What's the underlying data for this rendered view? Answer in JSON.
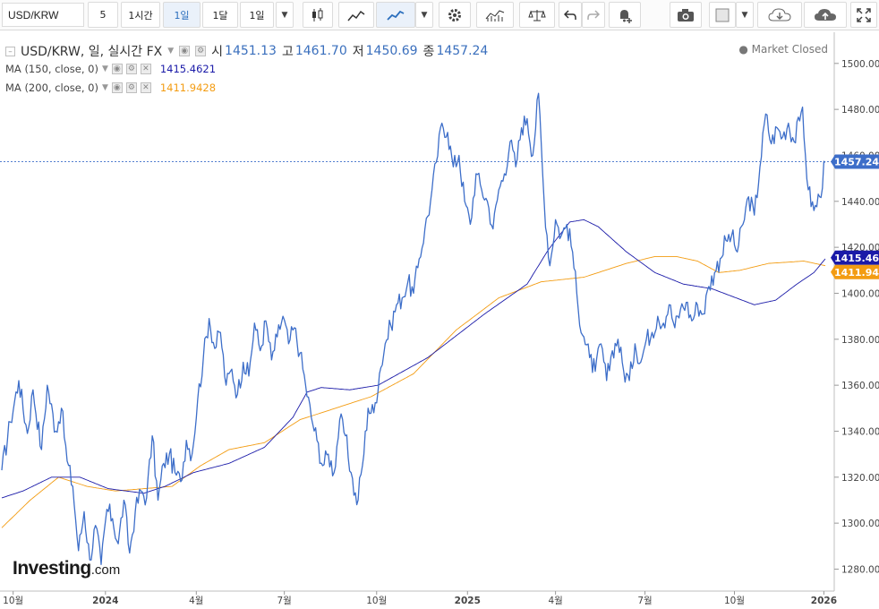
{
  "toolbar": {
    "symbol": "USD/KRW",
    "interval_value": "5",
    "buttons": [
      "1시간",
      "1일",
      "1달",
      "1일"
    ],
    "active_button_index": 1,
    "icons": [
      "candlestick-icon",
      "line-chart-icon",
      "area-chart-icon",
      "settings-icon",
      "indicators-icon",
      "compare-scale-icon",
      "undo-icon",
      "redo-icon",
      "alert-icon",
      "camera-icon",
      "color-picker-icon",
      "cloud-download-icon",
      "cloud-upload-icon",
      "fullscreen-icon"
    ]
  },
  "legend": {
    "title": "USD/KRW, 일, 실시간 FX",
    "open_label": "시",
    "open": "1451.13",
    "high_label": "고",
    "high": "1461.70",
    "low_label": "저",
    "low": "1450.69",
    "close_label": "종",
    "close": "1457.24",
    "ma1_label": "MA (150, close, 0)",
    "ma1_value": "1415.4621",
    "ma2_label": "MA (200, close, 0)",
    "ma2_value": "1411.9428",
    "status": "Market Closed"
  },
  "brand": {
    "name": "Investing",
    "suffix": ".com"
  },
  "colors": {
    "price": "#3d6ec9",
    "ma150": "#1a1aa8",
    "ma200": "#f39c12",
    "last_price_tag": "#3d6ec9",
    "ma150_tag": "#1a1aa8",
    "ma200_tag": "#f39c12"
  },
  "chart_data": {
    "type": "line",
    "x_ticks": [
      "10월",
      "2024",
      "4월",
      "7월",
      "10월",
      "2025",
      "4월",
      "7월",
      "10월",
      "2026"
    ],
    "y_ticks": [
      1280,
      1300,
      1320,
      1340,
      1360,
      1380,
      1400,
      1420,
      1440,
      1460,
      1480,
      1500
    ],
    "ylim": [
      1272,
      1512
    ],
    "n_points": 581,
    "last_price": "1457.24",
    "ma150_last": "1415.46",
    "ma200_last": "1411.94",
    "series": [
      {
        "name": "USD/KRW",
        "anchors": [
          [
            0,
            1323
          ],
          [
            6,
            1344
          ],
          [
            12,
            1362
          ],
          [
            18,
            1339
          ],
          [
            22,
            1358
          ],
          [
            28,
            1332
          ],
          [
            32,
            1360
          ],
          [
            38,
            1340
          ],
          [
            42,
            1350
          ],
          [
            46,
            1327
          ],
          [
            50,
            1316
          ],
          [
            54,
            1288
          ],
          [
            58,
            1305
          ],
          [
            62,
            1284
          ],
          [
            66,
            1299
          ],
          [
            70,
            1282
          ],
          [
            74,
            1306
          ],
          [
            78,
            1302
          ],
          [
            82,
            1291
          ],
          [
            86,
            1310
          ],
          [
            90,
            1287
          ],
          [
            94,
            1305
          ],
          [
            98,
            1314
          ],
          [
            102,
            1311
          ],
          [
            106,
            1338
          ],
          [
            110,
            1310
          ],
          [
            114,
            1326
          ],
          [
            118,
            1330
          ],
          [
            122,
            1322
          ],
          [
            126,
            1318
          ],
          [
            130,
            1336
          ],
          [
            134,
            1330
          ],
          [
            138,
            1354
          ],
          [
            142,
            1372
          ],
          [
            146,
            1389
          ],
          [
            150,
            1376
          ],
          [
            154,
            1383
          ],
          [
            158,
            1360
          ],
          [
            162,
            1367
          ],
          [
            166,
            1356
          ],
          [
            170,
            1370
          ],
          [
            174,
            1364
          ],
          [
            178,
            1387
          ],
          [
            182,
            1375
          ],
          [
            186,
            1388
          ],
          [
            190,
            1371
          ],
          [
            194,
            1381
          ],
          [
            198,
            1390
          ],
          [
            202,
            1378
          ],
          [
            206,
            1385
          ],
          [
            210,
            1374
          ],
          [
            214,
            1360
          ],
          [
            218,
            1346
          ],
          [
            222,
            1336
          ],
          [
            226,
            1325
          ],
          [
            230,
            1330
          ],
          [
            234,
            1322
          ],
          [
            238,
            1345
          ],
          [
            242,
            1338
          ],
          [
            246,
            1322
          ],
          [
            250,
            1308
          ],
          [
            254,
            1325
          ],
          [
            258,
            1350
          ],
          [
            262,
            1348
          ],
          [
            266,
            1365
          ],
          [
            270,
            1378
          ],
          [
            274,
            1386
          ],
          [
            278,
            1395
          ],
          [
            282,
            1398
          ],
          [
            286,
            1405
          ],
          [
            290,
            1400
          ],
          [
            294,
            1415
          ],
          [
            298,
            1428
          ],
          [
            302,
            1440
          ],
          [
            306,
            1457
          ],
          [
            310,
            1474
          ],
          [
            314,
            1470
          ],
          [
            318,
            1455
          ],
          [
            322,
            1460
          ],
          [
            326,
            1440
          ],
          [
            330,
            1430
          ],
          [
            334,
            1452
          ],
          [
            338,
            1445
          ],
          [
            342,
            1440
          ],
          [
            346,
            1428
          ],
          [
            350,
            1445
          ],
          [
            354,
            1452
          ],
          [
            358,
            1466
          ],
          [
            362,
            1455
          ],
          [
            366,
            1472
          ],
          [
            370,
            1476
          ],
          [
            374,
            1460
          ],
          [
            378,
            1487
          ],
          [
            382,
            1440
          ],
          [
            386,
            1412
          ],
          [
            390,
            1432
          ],
          [
            394,
            1425
          ],
          [
            398,
            1430
          ],
          [
            402,
            1418
          ],
          [
            406,
            1393
          ],
          [
            410,
            1381
          ],
          [
            414,
            1372
          ],
          [
            418,
            1366
          ],
          [
            422,
            1378
          ],
          [
            426,
            1362
          ],
          [
            430,
            1375
          ],
          [
            434,
            1380
          ],
          [
            438,
            1366
          ],
          [
            442,
            1362
          ],
          [
            446,
            1378
          ],
          [
            450,
            1370
          ],
          [
            454,
            1380
          ],
          [
            458,
            1383
          ],
          [
            462,
            1390
          ],
          [
            466,
            1387
          ],
          [
            470,
            1395
          ],
          [
            474,
            1385
          ],
          [
            478,
            1393
          ],
          [
            482,
            1396
          ],
          [
            486,
            1388
          ],
          [
            490,
            1395
          ],
          [
            494,
            1391
          ],
          [
            498,
            1403
          ],
          [
            502,
            1409
          ],
          [
            506,
            1415
          ],
          [
            510,
            1423
          ],
          [
            514,
            1425
          ],
          [
            518,
            1418
          ],
          [
            522,
            1430
          ],
          [
            526,
            1442
          ],
          [
            530,
            1434
          ],
          [
            534,
            1455
          ],
          [
            538,
            1478
          ],
          [
            542,
            1465
          ],
          [
            546,
            1472
          ],
          [
            550,
            1468
          ],
          [
            554,
            1474
          ],
          [
            558,
            1466
          ],
          [
            562,
            1475
          ],
          [
            564,
            1481
          ],
          [
            566,
            1460
          ],
          [
            568,
            1445
          ],
          [
            572,
            1436
          ],
          [
            576,
            1442
          ],
          [
            580,
            1457
          ]
        ]
      },
      {
        "name": "MA (150, close, 0)",
        "anchors": [
          [
            0,
            1311
          ],
          [
            15,
            1314
          ],
          [
            35,
            1320
          ],
          [
            55,
            1320
          ],
          [
            75,
            1315
          ],
          [
            100,
            1313
          ],
          [
            115,
            1316
          ],
          [
            135,
            1322
          ],
          [
            160,
            1326
          ],
          [
            185,
            1333
          ],
          [
            205,
            1346
          ],
          [
            215,
            1357
          ],
          [
            225,
            1359
          ],
          [
            245,
            1358
          ],
          [
            265,
            1360
          ],
          [
            300,
            1372
          ],
          [
            340,
            1391
          ],
          [
            370,
            1404
          ],
          [
            385,
            1419
          ],
          [
            400,
            1431
          ],
          [
            410,
            1432
          ],
          [
            420,
            1429
          ],
          [
            440,
            1418
          ],
          [
            460,
            1409
          ],
          [
            480,
            1404
          ],
          [
            500,
            1402
          ],
          [
            530,
            1395
          ],
          [
            545,
            1397
          ],
          [
            560,
            1404
          ],
          [
            572,
            1409
          ],
          [
            580,
            1415
          ]
        ]
      },
      {
        "name": "MA (200, close, 0)",
        "anchors": [
          [
            0,
            1298
          ],
          [
            20,
            1310
          ],
          [
            40,
            1320
          ],
          [
            60,
            1316
          ],
          [
            80,
            1314
          ],
          [
            100,
            1315
          ],
          [
            120,
            1316
          ],
          [
            140,
            1325
          ],
          [
            160,
            1332
          ],
          [
            185,
            1335
          ],
          [
            210,
            1345
          ],
          [
            230,
            1349
          ],
          [
            260,
            1355
          ],
          [
            290,
            1365
          ],
          [
            320,
            1384
          ],
          [
            350,
            1398
          ],
          [
            380,
            1405
          ],
          [
            410,
            1407
          ],
          [
            440,
            1413
          ],
          [
            460,
            1416
          ],
          [
            475,
            1416
          ],
          [
            490,
            1414
          ],
          [
            505,
            1409
          ],
          [
            520,
            1410
          ],
          [
            540,
            1413
          ],
          [
            565,
            1414
          ],
          [
            580,
            1412
          ]
        ]
      }
    ]
  }
}
